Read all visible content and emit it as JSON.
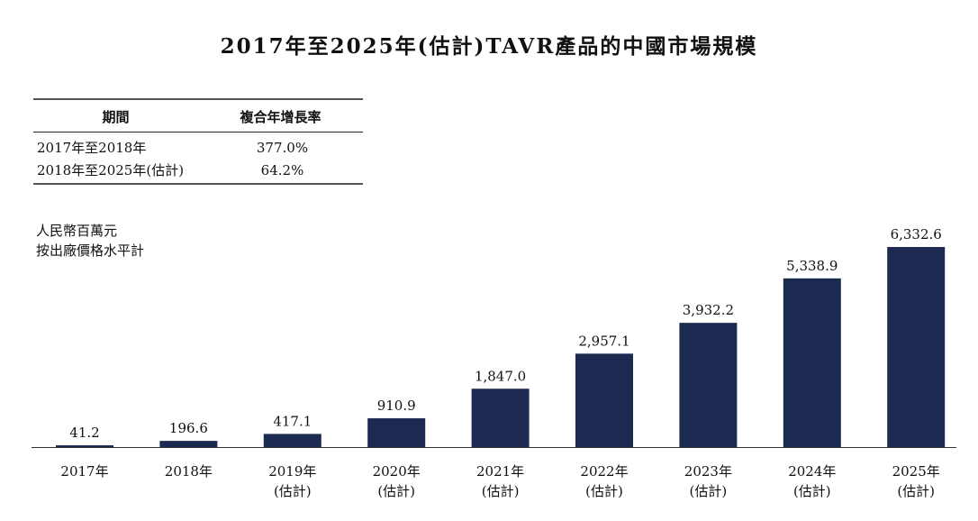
{
  "chart_data": {
    "type": "bar",
    "title": "2017年至2025年(估計)TAVR產品的中國市場規模",
    "ylabel_lines": [
      "人民幣百萬元",
      "按出廠價格水平計"
    ],
    "categories": [
      [
        "2017年"
      ],
      [
        "2018年"
      ],
      [
        "2019年",
        "(估計)"
      ],
      [
        "2020年",
        "(估計)"
      ],
      [
        "2021年",
        "(估計)"
      ],
      [
        "2022年",
        "(估計)"
      ],
      [
        "2023年",
        "(估計)"
      ],
      [
        "2024年",
        "(估計)"
      ],
      [
        "2025年",
        "(估計)"
      ]
    ],
    "values": [
      41.2,
      196.6,
      417.1,
      910.9,
      1847.0,
      2957.1,
      3932.2,
      5338.9,
      6332.6
    ],
    "value_labels": [
      "41.2",
      "196.6",
      "417.1",
      "910.9",
      "1,847.0",
      "2,957.1",
      "3,932.2",
      "5,338.9",
      "6,332.6"
    ],
    "ylim": [
      0,
      6332.6
    ],
    "bar_color": "#1c2a52",
    "grid": false
  },
  "cagr_table": {
    "headers": [
      "期間",
      "複合年增長率"
    ],
    "rows": [
      [
        "2017年至2018年",
        "377.0%"
      ],
      [
        "2018年至2025年(估計)",
        "64.2%"
      ]
    ]
  }
}
